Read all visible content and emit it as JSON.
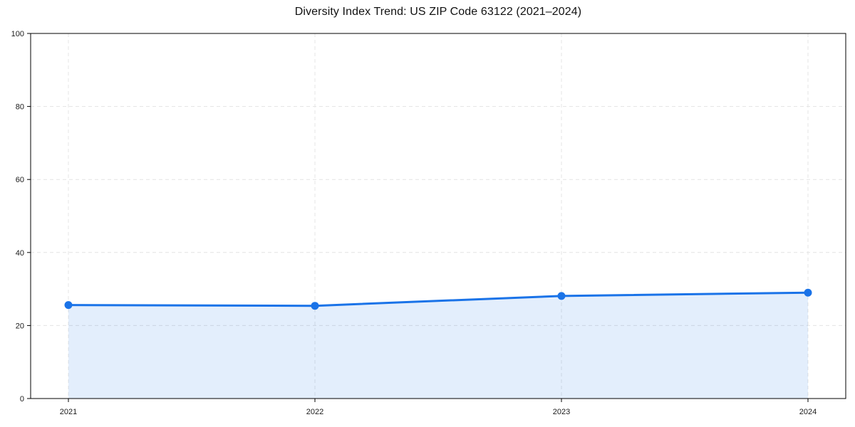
{
  "page": {
    "background": "#ffffff"
  },
  "chart_data": {
    "type": "area",
    "title": "Diversity Index Trend: US ZIP Code 63122 (2021–2024)",
    "categories": [
      "2021",
      "2022",
      "2023",
      "2024"
    ],
    "values": [
      25.6,
      25.4,
      28.1,
      29.0
    ],
    "xlabel": "",
    "ylabel": "",
    "ylim": [
      0,
      100
    ],
    "yticks": [
      0,
      20,
      40,
      60,
      80,
      100
    ],
    "grid": true,
    "grid_style": "dashed",
    "legend": "none",
    "colors": {
      "line": "#1a73e8",
      "marker": "#1a73e8",
      "fill": "#1a73e8",
      "fill_opacity": 0.12,
      "grid": "#e4e4e4",
      "spine": "#000000",
      "tick_text": "#1a1a1a",
      "title_text": "#111111",
      "background": "#ffffff"
    }
  }
}
